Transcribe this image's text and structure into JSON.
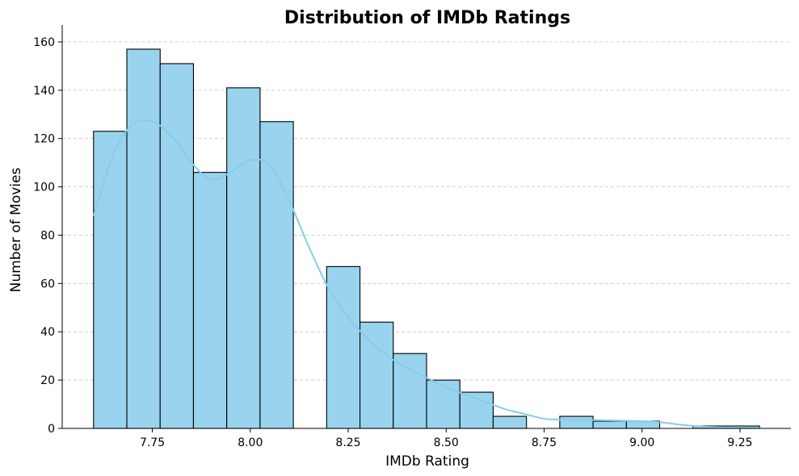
{
  "chart_data": {
    "type": "bar",
    "subtype": "histogram-with-kde",
    "title": "Distribution of IMDb Ratings",
    "xlabel": "IMDb Rating",
    "ylabel": "Number of Movies",
    "xlim": [
      7.52,
      9.38
    ],
    "ylim": [
      0,
      165
    ],
    "xticks": [
      7.75,
      8.0,
      8.25,
      8.5,
      8.75,
      9.0,
      9.25
    ],
    "xtick_labels": [
      "7.75",
      "8.00",
      "8.25",
      "8.50",
      "8.75",
      "9.00",
      "9.25"
    ],
    "yticks": [
      0,
      20,
      40,
      60,
      80,
      100,
      120,
      140,
      160
    ],
    "ytick_labels": [
      "0",
      "20",
      "40",
      "60",
      "80",
      "100",
      "120",
      "140",
      "160"
    ],
    "grid": "y-dashed",
    "bins": [
      {
        "x0": 7.6,
        "x1": 7.685,
        "count": 123
      },
      {
        "x0": 7.685,
        "x1": 7.77,
        "count": 157
      },
      {
        "x0": 7.77,
        "x1": 7.855,
        "count": 151
      },
      {
        "x0": 7.855,
        "x1": 7.94,
        "count": 106
      },
      {
        "x0": 7.94,
        "x1": 8.025,
        "count": 141
      },
      {
        "x0": 8.025,
        "x1": 8.11,
        "count": 127
      },
      {
        "x0": 8.11,
        "x1": 8.195,
        "count": 0
      },
      {
        "x0": 8.195,
        "x1": 8.28,
        "count": 67
      },
      {
        "x0": 8.28,
        "x1": 8.365,
        "count": 44
      },
      {
        "x0": 8.365,
        "x1": 8.45,
        "count": 31
      },
      {
        "x0": 8.45,
        "x1": 8.535,
        "count": 20
      },
      {
        "x0": 8.535,
        "x1": 8.62,
        "count": 15
      },
      {
        "x0": 8.62,
        "x1": 8.705,
        "count": 5
      },
      {
        "x0": 8.705,
        "x1": 8.79,
        "count": 0
      },
      {
        "x0": 8.79,
        "x1": 8.875,
        "count": 5
      },
      {
        "x0": 8.875,
        "x1": 8.96,
        "count": 3
      },
      {
        "x0": 8.96,
        "x1": 9.045,
        "count": 3
      },
      {
        "x0": 9.045,
        "x1": 9.13,
        "count": 0
      },
      {
        "x0": 9.13,
        "x1": 9.215,
        "count": 1
      },
      {
        "x0": 9.215,
        "x1": 9.3,
        "count": 1
      }
    ],
    "kde": {
      "x": [
        7.6,
        7.65,
        7.7,
        7.75,
        7.8,
        7.85,
        7.9,
        7.95,
        8.0,
        8.05,
        8.1,
        8.15,
        8.2,
        8.25,
        8.3,
        8.35,
        8.4,
        8.45,
        8.5,
        8.55,
        8.6,
        8.65,
        8.7,
        8.75,
        8.8,
        8.85,
        8.9,
        8.95,
        9.0,
        9.05,
        9.1,
        9.15,
        9.2,
        9.25,
        9.3
      ],
      "y": [
        88,
        113,
        126,
        127,
        121,
        110,
        103,
        106,
        111,
        109,
        94,
        75,
        58,
        46,
        37,
        30,
        25,
        21,
        17,
        14,
        11,
        8,
        6,
        4,
        3.6,
        3.5,
        3.4,
        3.2,
        3.0,
        2.5,
        1.5,
        0.8,
        0.5,
        0.4,
        0.3
      ]
    },
    "colors": {
      "bar_fill": "#99d3ee",
      "bar_edge": "#000000",
      "kde_line": "#87cdea"
    }
  }
}
